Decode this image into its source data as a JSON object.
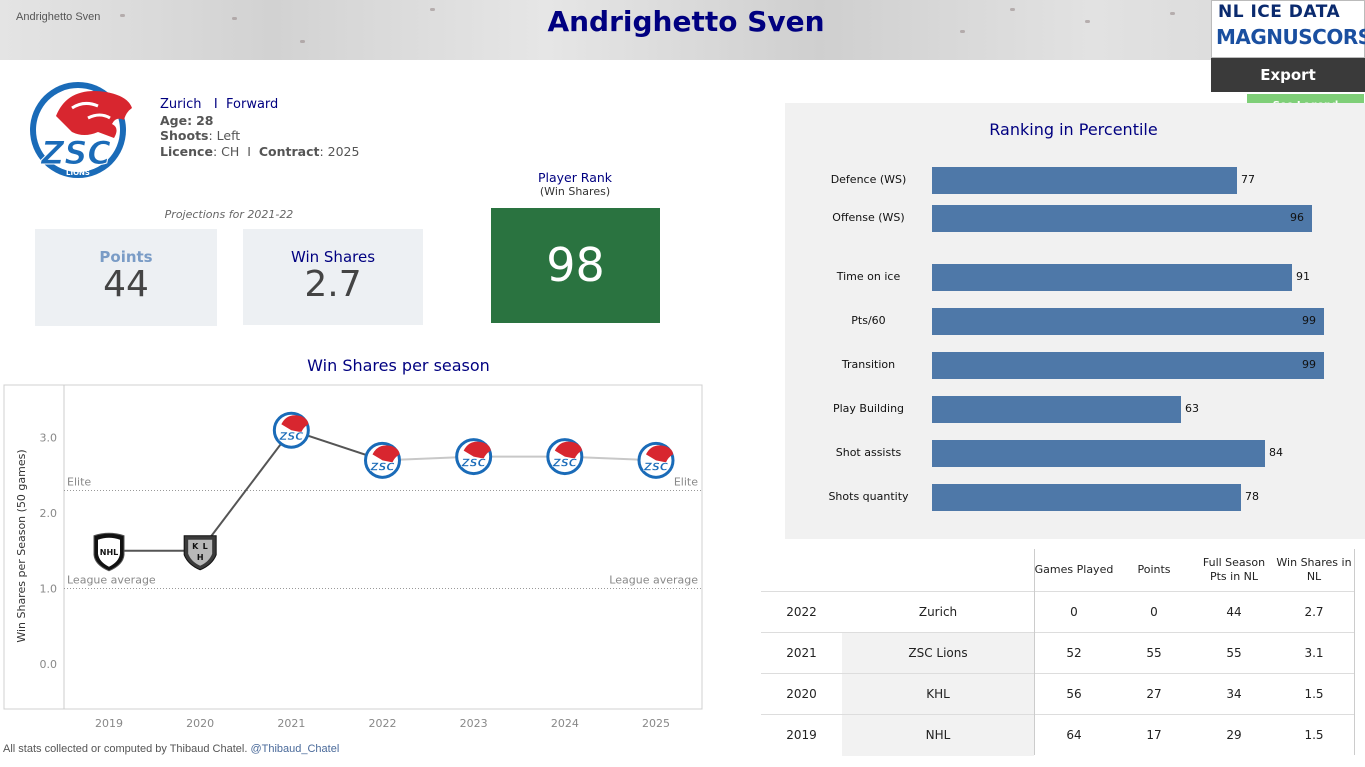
{
  "header": {
    "small_name": "Andrighetto Sven",
    "title": "Andrighetto Sven",
    "brand_line1": "NL ICE DATA",
    "brand_line2": "MAGNUSCORSI",
    "export_label": "Export",
    "legend_label": "See Legend"
  },
  "player": {
    "team": "Zurich",
    "separator": "I",
    "position": "Forward",
    "age_label": "Age:",
    "age": "28",
    "shoots_label": "Shoots",
    "shoots": ": Left",
    "licence_label": "Licence",
    "licence": ": CH",
    "contract_label": "Contract",
    "contract": ": 2025"
  },
  "projections": {
    "label": "Projections for 2021-22",
    "points_label": "Points",
    "points": "44",
    "ws_label": "Win Shares",
    "ws": "2.7",
    "rank_label": "Player Rank",
    "rank_sub": "(Win Shares)",
    "rank": "98"
  },
  "colors": {
    "title": "#000080",
    "points_label": "#7a9cc6",
    "rank_box": "#2a7340",
    "bar": "#4e78a8",
    "export_bg": "#3a3a3a",
    "legend_bg": "#7fcf78"
  },
  "chart_data": [
    {
      "type": "line",
      "title": "Win Shares per season",
      "ylabel": "Win Shares per Season (50 games)",
      "xlabel": "",
      "x": [
        "2019",
        "2020",
        "2021",
        "2022",
        "2023",
        "2024",
        "2025"
      ],
      "series": [
        {
          "values": [
            1.5,
            1.5,
            3.1,
            2.7,
            2.75,
            2.75,
            2.7
          ],
          "markers": [
            "nhl-logo",
            "khl-logo",
            "zsc-logo",
            "zsc-logo",
            "zsc-logo",
            "zsc-logo",
            "zsc-logo"
          ]
        }
      ],
      "yticks": [
        "0.0",
        "1.0",
        "2.0",
        "3.0"
      ],
      "ylim": [
        -0.6,
        3.7
      ],
      "reference_lines": [
        {
          "label": "Elite",
          "value": 2.3
        },
        {
          "label": "League average",
          "value": 1.0
        }
      ],
      "grid": false
    },
    {
      "type": "bar",
      "title": "Ranking in Percentile",
      "categories": [
        "Defence (WS)",
        "Offense (WS)",
        "Time on ice",
        "Pts/60",
        "Transition",
        "Play Building",
        "Shot assists",
        "Shots quantity"
      ],
      "values": [
        77,
        96,
        91,
        99,
        99,
        63,
        84,
        78
      ],
      "xlim": [
        0,
        100
      ],
      "orientation": "horizontal"
    },
    {
      "type": "table",
      "columns": [
        "Games Played",
        "Points",
        "Full Season Pts in NL",
        "Win Shares in NL"
      ],
      "rows": [
        {
          "season": "2022",
          "team": "Zurich",
          "values": [
            "0",
            "0",
            "44",
            "2.7"
          ]
        },
        {
          "season": "2021",
          "team": "ZSC Lions",
          "values": [
            "52",
            "55",
            "55",
            "3.1"
          ]
        },
        {
          "season": "2020",
          "team": "KHL",
          "values": [
            "56",
            "27",
            "34",
            "1.5"
          ]
        },
        {
          "season": "2019",
          "team": "NHL",
          "values": [
            "64",
            "17",
            "29",
            "1.5"
          ]
        }
      ]
    }
  ],
  "footer": {
    "text": "All stats collected or computed by Thibaud Chatel.",
    "handle": "@Thibaud_Chatel"
  }
}
